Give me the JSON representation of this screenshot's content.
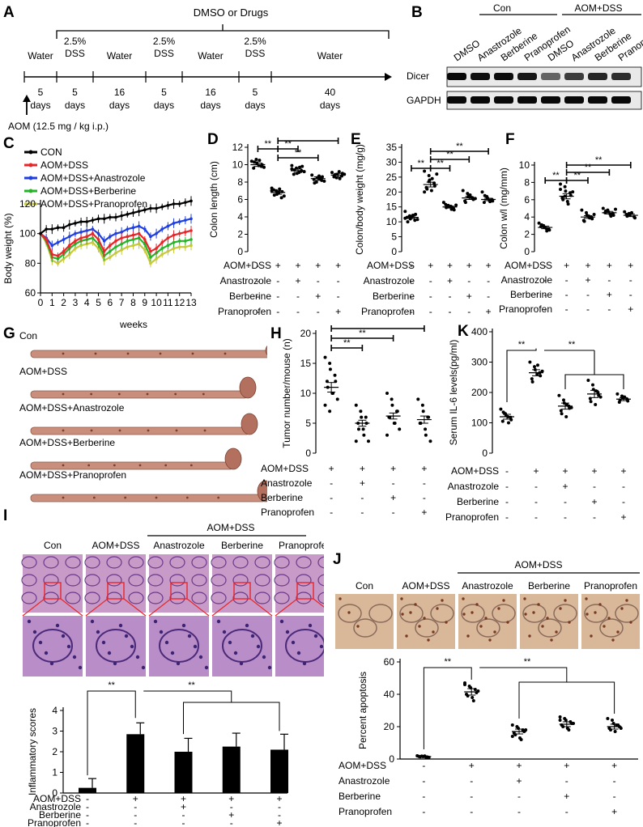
{
  "panels": {
    "A": {
      "letter": "A",
      "header": "DMSO or Drugs",
      "segments": [
        {
          "top": "Water",
          "bottom": "5 days",
          "b1": "5",
          "b2": "days"
        },
        {
          "top": "2.5% DSS",
          "t1": "2.5%",
          "t2": "DSS",
          "b1": "5",
          "b2": "days"
        },
        {
          "top": "Water",
          "b1": "16",
          "b2": "days"
        },
        {
          "t1": "2.5%",
          "t2": "DSS",
          "b1": "5",
          "b2": "days"
        },
        {
          "top": "Water",
          "b1": "16",
          "b2": "days"
        },
        {
          "t1": "2.5%",
          "t2": "DSS",
          "b1": "5",
          "b2": "days"
        },
        {
          "top": "Water",
          "b1": "40",
          "b2": "days"
        }
      ],
      "aom_note": "AOM (12.5 mg / kg i.p.)"
    },
    "B": {
      "letter": "B",
      "group_con": "Con",
      "group_aom": "AOM+DSS",
      "lanes": [
        "DMSO",
        "Anastrozole",
        "Berberine",
        "Pranoprofen",
        "DMSO",
        "Anastrozole",
        "Berberine",
        "Pranoprofen"
      ],
      "rows": [
        "Dicer",
        "GAPDH"
      ],
      "dicer_intensity": [
        0.95,
        0.9,
        0.92,
        0.85,
        0.35,
        0.6,
        0.75,
        0.7
      ],
      "gapdh_intensity": [
        0.95,
        0.95,
        0.95,
        0.95,
        0.95,
        0.95,
        0.95,
        0.95
      ]
    },
    "C": {
      "letter": "C",
      "xlabel": "weeks"
    },
    "D": {
      "letter": "D"
    },
    "E": {
      "letter": "E"
    },
    "F": {
      "letter": "F"
    },
    "G": {
      "letter": "G",
      "labels": [
        "Con",
        "AOM+DSS",
        "AOM+DSS+Anastrozole",
        "AOM+DSS+Berberine",
        "AOM+DSS+Pranoprofen"
      ]
    },
    "H": {
      "letter": "H"
    },
    "K": {
      "letter": "K"
    },
    "I": {
      "letter": "I",
      "group_label": "AOM+DSS",
      "columns": [
        "Con",
        "AOM+DSS",
        "Anastrozole",
        "Berberine",
        "Pranoprofen"
      ]
    },
    "J": {
      "letter": "J",
      "group_label": "AOM+DSS",
      "columns": [
        "Con",
        "AOM+DSS",
        "Anastrozole",
        "Berberine",
        "Pranoprofen"
      ]
    }
  },
  "treatment_rows": {
    "names": [
      "AOM+DSS",
      "Anastrozole",
      "Berberine",
      "Pranoprofen"
    ],
    "signs": [
      [
        "-",
        "+",
        "+",
        "+",
        "+"
      ],
      [
        "-",
        "-",
        "+",
        "-",
        "-"
      ],
      [
        "-",
        "-",
        "-",
        "+",
        "-"
      ],
      [
        "-",
        "-",
        "-",
        "-",
        "+"
      ]
    ]
  },
  "significance": "**",
  "colors": {
    "con": "#000000",
    "aom": "#e8262a",
    "anastrozole": "#1f3fe0",
    "berberine": "#27b327",
    "pranoprofen": "#c8c83c",
    "tissue": "#c98f7c",
    "he_stain": "#b07ab8",
    "ihc": "#d9b89a"
  },
  "chart_data": [
    {
      "id": "C",
      "type": "line",
      "xlabel": "weeks",
      "ylabel": "Body weight (%)",
      "xlim": [
        0,
        13
      ],
      "ylim": [
        60,
        120
      ],
      "xticks": [
        0,
        1,
        2,
        3,
        4,
        5,
        6,
        7,
        8,
        9,
        10,
        11,
        12,
        13
      ],
      "yticks": [
        60,
        80,
        100,
        120
      ],
      "legend": "top-left",
      "x": [
        0,
        0.5,
        1,
        1.5,
        2,
        2.5,
        3,
        3.5,
        4,
        4.5,
        5,
        5.5,
        6,
        6.5,
        7,
        7.5,
        8,
        8.5,
        9,
        9.5,
        10,
        10.5,
        11,
        11.5,
        12,
        12.5,
        13
      ],
      "series": [
        {
          "name": "CON",
          "color": "#000000",
          "values": [
            100,
            103,
            103,
            104,
            104,
            106,
            107,
            108,
            108,
            109,
            110,
            110,
            111,
            111,
            112,
            113,
            114,
            115,
            116,
            117,
            117,
            118,
            119,
            120,
            120,
            121,
            122
          ]
        },
        {
          "name": "AOM+DSS",
          "color": "#e8262a",
          "values": [
            100,
            96,
            86,
            85,
            88,
            92,
            95,
            97,
            98,
            100,
            96,
            88,
            92,
            95,
            97,
            98,
            99,
            100,
            96,
            88,
            90,
            94,
            97,
            99,
            100,
            101,
            102
          ]
        },
        {
          "name": "AOM+DSS+Anastrozole",
          "color": "#1f3fe0",
          "values": [
            100,
            97,
            92,
            94,
            96,
            98,
            100,
            101,
            102,
            103,
            100,
            95,
            98,
            100,
            101,
            103,
            104,
            105,
            103,
            98,
            100,
            103,
            105,
            107,
            108,
            109,
            110
          ]
        },
        {
          "name": "AOM+DSS+Berberine",
          "color": "#27b327",
          "values": [
            100,
            95,
            84,
            83,
            86,
            90,
            93,
            95,
            96,
            97,
            93,
            85,
            88,
            91,
            93,
            95,
            96,
            97,
            93,
            84,
            87,
            90,
            92,
            94,
            95,
            95,
            96
          ]
        },
        {
          "name": "AOM+DSS+Pranoprofen",
          "color": "#c8c83c",
          "values": [
            100,
            94,
            82,
            80,
            83,
            86,
            90,
            92,
            93,
            94,
            90,
            82,
            84,
            87,
            89,
            91,
            92,
            93,
            89,
            80,
            83,
            86,
            88,
            90,
            91,
            91,
            92
          ]
        }
      ]
    },
    {
      "id": "D",
      "type": "scatter",
      "ylabel": "Colon length (cm)",
      "ylim": [
        0,
        12
      ],
      "yticks": [
        0,
        2,
        4,
        6,
        8,
        10,
        12
      ],
      "groups": [
        "Con",
        "AOM+DSS",
        "Anastrozole",
        "Berberine",
        "Pranoprofen"
      ],
      "means": [
        10.0,
        6.8,
        9.3,
        8.4,
        8.8
      ],
      "sems": [
        0.2,
        0.2,
        0.2,
        0.2,
        0.2
      ],
      "points": [
        [
          10.4,
          10.6,
          10.2,
          9.8,
          10.0,
          9.6,
          10.3,
          9.9,
          10.5,
          9.7
        ],
        [
          7.3,
          7.0,
          6.6,
          6.2,
          6.9,
          7.1,
          6.5,
          6.8,
          7.2,
          6.4,
          7.0
        ],
        [
          9.9,
          9.6,
          9.0,
          9.3,
          9.8,
          8.9,
          9.4,
          9.1,
          9.7,
          9.2,
          9.5
        ],
        [
          8.8,
          8.0,
          8.5,
          8.2,
          8.6,
          8.3,
          7.9,
          8.7,
          8.4,
          8.1
        ],
        [
          9.1,
          8.5,
          8.9,
          8.7,
          9.0,
          8.6,
          8.8,
          9.2,
          8.4,
          8.9
        ]
      ],
      "brackets": [
        [
          0,
          1
        ],
        [
          1,
          2
        ],
        [
          1,
          3
        ],
        [
          1,
          4
        ]
      ]
    },
    {
      "id": "E",
      "type": "scatter",
      "ylabel": "Colon/body weight (mg/g)",
      "ylim": [
        0,
        35
      ],
      "yticks": [
        0,
        5,
        10,
        15,
        20,
        25,
        30,
        35
      ],
      "groups": [
        "Con",
        "AOM+DSS",
        "Anastrozole",
        "Berberine",
        "Pranoprofen"
      ],
      "means": [
        11.5,
        22.5,
        15.0,
        18.0,
        17.5
      ],
      "sems": [
        0.4,
        0.8,
        0.3,
        0.5,
        0.4
      ],
      "points": [
        [
          13.5,
          12.0,
          11.0,
          10.5,
          12.5,
          11.5,
          10.0,
          11.8,
          12.2,
          10.8,
          11.2
        ],
        [
          27.0,
          25.5,
          24.0,
          23.0,
          22.0,
          21.5,
          21.0,
          20.5,
          24.5,
          26.0,
          20.0,
          23.5
        ],
        [
          16.5,
          15.5,
          15.0,
          14.5,
          14.0,
          15.8,
          14.8,
          15.2,
          14.2,
          15.6
        ],
        [
          20.5,
          19.5,
          18.5,
          18.0,
          17.5,
          17.0,
          16.5,
          19.0,
          18.2,
          17.8
        ],
        [
          20.0,
          18.5,
          18.0,
          17.5,
          17.0,
          16.5,
          18.8,
          17.2,
          16.8
        ]
      ],
      "brackets": [
        [
          0,
          1
        ],
        [
          1,
          2
        ],
        [
          1,
          3
        ],
        [
          1,
          4
        ]
      ]
    },
    {
      "id": "F",
      "type": "scatter",
      "ylabel": "Colon w/l (mg/mm)",
      "ylim": [
        0,
        10
      ],
      "yticks": [
        0,
        2,
        4,
        6,
        8,
        10
      ],
      "groups": [
        "Con",
        "AOM+DSS",
        "Anastrozole",
        "Berberine",
        "Pranoprofen"
      ],
      "means": [
        2.8,
        6.4,
        4.0,
        4.5,
        4.2
      ],
      "sems": [
        0.15,
        0.3,
        0.15,
        0.15,
        0.15
      ],
      "points": [
        [
          3.3,
          3.0,
          2.8,
          2.6,
          2.5,
          2.9,
          3.1,
          2.7,
          2.4
        ],
        [
          7.8,
          7.5,
          7.0,
          6.8,
          6.5,
          6.2,
          6.0,
          5.8,
          5.5,
          6.9,
          7.2,
          6.4
        ],
        [
          4.8,
          4.5,
          4.2,
          4.0,
          3.8,
          3.6,
          3.5,
          4.1,
          3.9,
          4.3
        ],
        [
          5.0,
          4.8,
          4.6,
          4.4,
          4.2,
          4.5,
          4.7,
          4.3,
          4.1,
          4.9
        ],
        [
          4.6,
          4.4,
          4.2,
          4.0,
          3.9,
          4.3,
          4.1,
          4.5
        ]
      ],
      "brackets": [
        [
          0,
          1
        ],
        [
          1,
          2
        ],
        [
          1,
          3
        ],
        [
          1,
          4
        ]
      ]
    },
    {
      "id": "H",
      "type": "scatter",
      "ylabel": "Tumor number/mouse (n)",
      "ylim": [
        0,
        20
      ],
      "yticks": [
        0,
        5,
        10,
        15,
        20
      ],
      "groups": [
        "AOM+DSS",
        "Anastrozole",
        "Berberine",
        "Pranoprofen"
      ],
      "means": [
        11.0,
        5.0,
        6.2,
        5.6
      ],
      "sems": [
        0.8,
        0.5,
        0.5,
        0.6
      ],
      "points": [
        [
          16,
          15,
          14,
          13,
          12,
          12,
          11,
          10,
          10,
          9,
          8,
          7
        ],
        [
          8,
          7,
          6,
          6,
          5,
          5,
          4,
          4,
          3,
          2,
          2
        ],
        [
          10,
          9,
          8,
          7,
          7,
          6,
          6,
          5,
          5,
          4,
          3
        ],
        [
          9,
          8,
          7,
          6,
          6,
          5,
          5,
          4,
          3,
          2
        ]
      ],
      "brackets": [
        [
          0,
          1
        ],
        [
          0,
          2
        ],
        [
          0,
          3
        ]
      ]
    },
    {
      "id": "K",
      "type": "scatter",
      "ylabel": "Serum IL-6 levels(pg/ml)",
      "ylim": [
        0,
        400
      ],
      "yticks": [
        0,
        100,
        200,
        300,
        400
      ],
      "groups": [
        "Con",
        "AOM+DSS",
        "Anastrozole",
        "Berberine",
        "Pranoprofen"
      ],
      "means": [
        120,
        265,
        155,
        195,
        178
      ],
      "sems": [
        8,
        10,
        10,
        12,
        5
      ],
      "points": [
        [
          145,
          130,
          125,
          118,
          110,
          105,
          135,
          120,
          100
        ],
        [
          300,
          285,
          275,
          265,
          255,
          245,
          235,
          260,
          290,
          270
        ],
        [
          190,
          175,
          165,
          155,
          148,
          140,
          130,
          120,
          160,
          150
        ],
        [
          240,
          225,
          210,
          200,
          190,
          180,
          170,
          160,
          205,
          185
        ],
        [
          195,
          188,
          182,
          178,
          172,
          168,
          175,
          185
        ]
      ],
      "bracket_type": "group"
    },
    {
      "id": "I",
      "type": "bar",
      "ylabel": "Inflammatory scores",
      "ylim": [
        0,
        4
      ],
      "yticks": [
        0,
        1,
        2,
        3,
        4
      ],
      "categories": [
        "Con",
        "AOM+DSS",
        "Anastrozole",
        "Berberine",
        "Pranoprofen"
      ],
      "values": [
        0.25,
        2.85,
        2.0,
        2.25,
        2.1
      ],
      "errors": [
        0.45,
        0.55,
        0.65,
        0.65,
        0.75
      ]
    },
    {
      "id": "J",
      "type": "scatter",
      "ylabel": "Percent apoptosis",
      "ylim": [
        0,
        60
      ],
      "yticks": [
        0,
        20,
        40,
        60
      ],
      "groups": [
        "Con",
        "AOM+DSS",
        "Anastrozole",
        "Berberine",
        "Pranoprofen"
      ],
      "means": [
        1.5,
        41.5,
        17.0,
        21.5,
        20.0
      ],
      "sems": [
        0.5,
        2.0,
        1.5,
        1.5,
        1.5
      ],
      "points": [
        [
          2.0,
          1.8,
          1.5,
          1.2,
          1.0,
          1.6,
          1.4,
          1.9,
          1.1
        ],
        [
          47,
          45,
          44,
          43,
          41,
          40,
          39,
          38,
          36,
          42,
          46
        ],
        [
          21,
          20,
          19,
          18,
          17,
          16,
          15,
          13,
          12,
          18,
          14
        ],
        [
          26,
          25,
          24,
          23,
          22,
          21,
          20,
          19,
          18,
          22,
          24
        ],
        [
          25,
          24,
          22,
          21,
          20,
          19,
          18,
          17,
          21,
          19
        ]
      ],
      "bracket_type": "group"
    }
  ]
}
